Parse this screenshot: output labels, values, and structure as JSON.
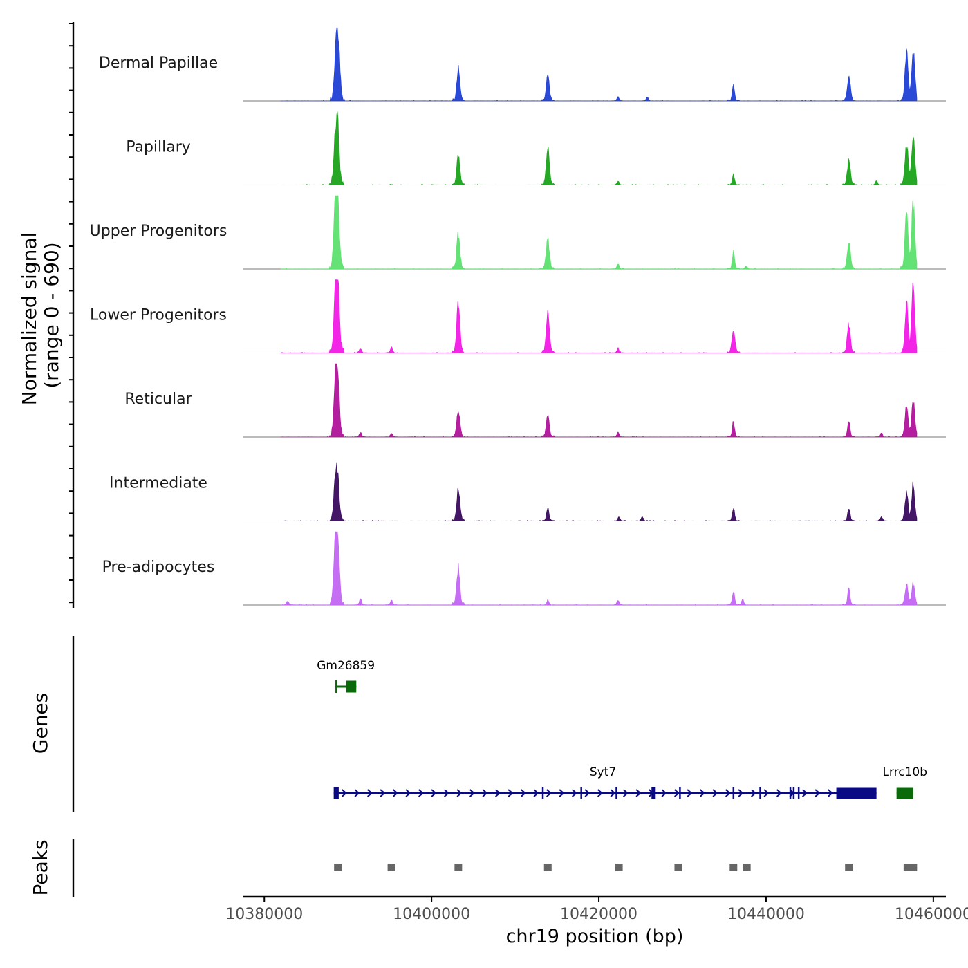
{
  "chart_data": {
    "type": "coverage-track",
    "chromosome": "chr19",
    "xlabel": "chr19 position (bp)",
    "xlim": [
      10377500,
      10461500
    ],
    "x_ticks": [
      10380000,
      10400000,
      10420000,
      10440000,
      10460000
    ],
    "x_tick_labels": [
      "10380000",
      "10400000",
      "10420000",
      "10440000",
      "10460000"
    ],
    "signal_ylabel_line1": "Normalized signal",
    "signal_ylabel_line2": "(range 0 - 690)",
    "signal_range": [
      0,
      690
    ],
    "signal_start": 10382000,
    "signal_end": 10458000,
    "peak_centers": [
      10388500,
      10388800,
      10403200,
      10413900,
      10422400,
      10425800,
      10436100,
      10449900,
      10456800,
      10457700
    ],
    "tracks": [
      {
        "name": "Dermal Papillae",
        "color": "#1f3fd4",
        "peaks": [
          {
            "x": 10388600,
            "h": 590
          },
          {
            "x": 10388900,
            "h": 450
          },
          {
            "x": 10403200,
            "h": 330
          },
          {
            "x": 10413900,
            "h": 260
          },
          {
            "x": 10422300,
            "h": 40
          },
          {
            "x": 10425800,
            "h": 40
          },
          {
            "x": 10436100,
            "h": 170
          },
          {
            "x": 10449900,
            "h": 250
          },
          {
            "x": 10456800,
            "h": 510
          },
          {
            "x": 10457600,
            "h": 540
          }
        ]
      },
      {
        "name": "Papillary",
        "color": "#1aa31a",
        "peaks": [
          {
            "x": 10388500,
            "h": 460
          },
          {
            "x": 10388800,
            "h": 500
          },
          {
            "x": 10403200,
            "h": 320
          },
          {
            "x": 10413900,
            "h": 400
          },
          {
            "x": 10422300,
            "h": 40
          },
          {
            "x": 10436100,
            "h": 110
          },
          {
            "x": 10449900,
            "h": 260
          },
          {
            "x": 10453200,
            "h": 40
          },
          {
            "x": 10456800,
            "h": 440
          },
          {
            "x": 10457600,
            "h": 560
          }
        ]
      },
      {
        "name": "Upper Progenitors",
        "color": "#5de06e",
        "peaks": [
          {
            "x": 10388500,
            "h": 660
          },
          {
            "x": 10388800,
            "h": 640
          },
          {
            "x": 10403200,
            "h": 380
          },
          {
            "x": 10413900,
            "h": 320
          },
          {
            "x": 10422300,
            "h": 50
          },
          {
            "x": 10436100,
            "h": 180
          },
          {
            "x": 10437600,
            "h": 30
          },
          {
            "x": 10449900,
            "h": 300
          },
          {
            "x": 10456800,
            "h": 570
          },
          {
            "x": 10457600,
            "h": 690
          }
        ]
      },
      {
        "name": "Lower Progenitors",
        "color": "#f21ae6",
        "peaks": [
          {
            "x": 10388500,
            "h": 620
          },
          {
            "x": 10388800,
            "h": 690
          },
          {
            "x": 10391500,
            "h": 50
          },
          {
            "x": 10395200,
            "h": 60
          },
          {
            "x": 10403200,
            "h": 520
          },
          {
            "x": 10413900,
            "h": 420
          },
          {
            "x": 10422300,
            "h": 50
          },
          {
            "x": 10436100,
            "h": 230
          },
          {
            "x": 10449900,
            "h": 290
          },
          {
            "x": 10456800,
            "h": 510
          },
          {
            "x": 10457600,
            "h": 680
          }
        ]
      },
      {
        "name": "Reticular",
        "color": "#b0139a",
        "peaks": [
          {
            "x": 10388500,
            "h": 600
          },
          {
            "x": 10388800,
            "h": 530
          },
          {
            "x": 10391500,
            "h": 50
          },
          {
            "x": 10395200,
            "h": 40
          },
          {
            "x": 10403200,
            "h": 290
          },
          {
            "x": 10413900,
            "h": 210
          },
          {
            "x": 10422300,
            "h": 50
          },
          {
            "x": 10436100,
            "h": 160
          },
          {
            "x": 10449900,
            "h": 180
          },
          {
            "x": 10453800,
            "h": 40
          },
          {
            "x": 10456800,
            "h": 330
          },
          {
            "x": 10457600,
            "h": 400
          }
        ]
      },
      {
        "name": "Intermediate",
        "color": "#3a0a5e",
        "peaks": [
          {
            "x": 10388500,
            "h": 400
          },
          {
            "x": 10388800,
            "h": 370
          },
          {
            "x": 10403200,
            "h": 350
          },
          {
            "x": 10413900,
            "h": 150
          },
          {
            "x": 10422400,
            "h": 40
          },
          {
            "x": 10425200,
            "h": 40
          },
          {
            "x": 10436100,
            "h": 130
          },
          {
            "x": 10449900,
            "h": 140
          },
          {
            "x": 10453800,
            "h": 40
          },
          {
            "x": 10456800,
            "h": 290
          },
          {
            "x": 10457600,
            "h": 360
          }
        ]
      },
      {
        "name": "Pre-adipocytes",
        "color": "#c266f2",
        "peaks": [
          {
            "x": 10388500,
            "h": 690
          },
          {
            "x": 10388800,
            "h": 610
          },
          {
            "x": 10382800,
            "h": 40
          },
          {
            "x": 10391500,
            "h": 60
          },
          {
            "x": 10395200,
            "h": 50
          },
          {
            "x": 10403200,
            "h": 400
          },
          {
            "x": 10413900,
            "h": 50
          },
          {
            "x": 10422300,
            "h": 50
          },
          {
            "x": 10436100,
            "h": 150
          },
          {
            "x": 10437200,
            "h": 60
          },
          {
            "x": 10449900,
            "h": 180
          },
          {
            "x": 10456800,
            "h": 210
          },
          {
            "x": 10457600,
            "h": 220
          }
        ]
      }
    ],
    "genes_ylabel": "Genes",
    "genes": [
      {
        "name": "Gm26859",
        "strand": "+",
        "color": "#0a6a0a",
        "start": 10388500,
        "end": 10391000,
        "exons": [
          [
            10388500,
            10388700
          ],
          [
            10389800,
            10391000
          ]
        ],
        "row": 1
      },
      {
        "name": "Syt7",
        "strand": "+",
        "color": "#0a0a85",
        "start": 10388300,
        "end": 10453200,
        "exons": [
          [
            10388300,
            10388900
          ],
          [
            10413200,
            10413300
          ],
          [
            10417800,
            10417900
          ],
          [
            10422000,
            10422100
          ],
          [
            10426300,
            10426800
          ],
          [
            10429600,
            10429700
          ],
          [
            10436000,
            10436100
          ],
          [
            10439200,
            10439400
          ],
          [
            10442800,
            10442900
          ],
          [
            10443200,
            10443400
          ],
          [
            10443800,
            10444000
          ],
          [
            10448400,
            10453200
          ]
        ],
        "row": 2
      },
      {
        "name": "Lrrc10b",
        "strand": "+",
        "color": "#0a6a0a",
        "start": 10455600,
        "end": 10457600,
        "exons": [
          [
            10455600,
            10457600
          ]
        ],
        "row": 2
      }
    ],
    "peaks_ylabel": "Peaks",
    "peaks": [
      10388800,
      10395200,
      10403200,
      10413900,
      10422400,
      10429500,
      10436100,
      10437700,
      10449900,
      10456900,
      10457600
    ],
    "peak_color": "#666666"
  }
}
